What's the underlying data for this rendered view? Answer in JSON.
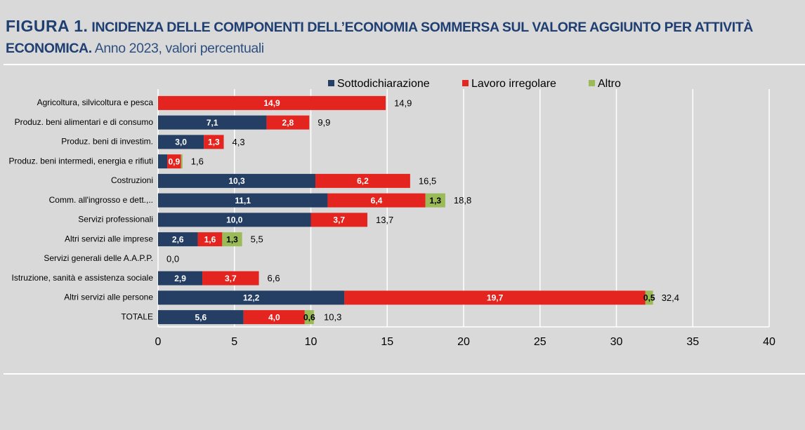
{
  "chart_data": {
    "type": "stacked-bar-horizontal",
    "figure_label": "FIGURA 1.",
    "title": "INCIDENZA DELLE COMPONENTI DELL’ECONOMIA SOMMERSA SUL VALORE AGGIUNTO PER ATTIVITÀ ECONOMICA.",
    "subtitle": "Anno 2023, valori percentuali",
    "categories": [
      "Agricoltura, silvicoltura e pesca",
      "Produz. beni alimentari e di consumo",
      "Produz. beni di investim.",
      "Produz. beni intermedi, energia e rifiuti",
      "Costruzioni",
      "Comm. all'ingrosso e dett.,..",
      "Servizi professionali",
      "Altri servizi alle imprese",
      "Servizi generali delle A.A.P.P.",
      "Istruzione, sanità e assistenza sociale",
      "Altri servizi alle persone",
      "TOTALE"
    ],
    "series": [
      {
        "name": "Sottodichiarazione",
        "color": "#243f63",
        "values": [
          null,
          7.1,
          3.0,
          0.6,
          10.3,
          11.1,
          10.0,
          2.6,
          null,
          2.9,
          12.2,
          5.6
        ],
        "value_labels": [
          null,
          "7,1",
          "3,0",
          null,
          "10,3",
          "11,1",
          "10,0",
          "2,6",
          null,
          "2,9",
          "12,2",
          "5,6"
        ]
      },
      {
        "name": "Lavoro irregolare",
        "color": "#e3241f",
        "values": [
          14.9,
          2.8,
          1.3,
          0.9,
          6.2,
          6.4,
          3.7,
          1.6,
          null,
          3.7,
          19.7,
          4.0
        ],
        "value_labels": [
          "14,9",
          "2,8",
          "1,3",
          "0,9",
          "6,2",
          "6,4",
          "3,7",
          "1,6",
          null,
          "3,7",
          "19,7",
          "4,0"
        ]
      },
      {
        "name": "Altro",
        "color": "#9bbb59",
        "values": [
          null,
          null,
          null,
          0.1,
          null,
          1.3,
          null,
          1.3,
          null,
          null,
          0.5,
          0.6
        ],
        "value_labels": [
          null,
          null,
          null,
          null,
          null,
          "1,3",
          null,
          "1,3",
          null,
          null,
          "0,5",
          "0,6"
        ]
      }
    ],
    "totals": [
      14.9,
      9.9,
      4.3,
      1.6,
      16.5,
      18.8,
      13.7,
      5.5,
      0.0,
      6.6,
      32.4,
      10.3
    ],
    "total_labels": [
      "14,9",
      "9,9",
      "4,3",
      "1,6",
      "16,5",
      "18,8",
      "13,7",
      "5,5",
      "0,0",
      "6,6",
      "32,4",
      "10,3"
    ],
    "xlim": [
      0,
      40
    ],
    "xticks": [
      0,
      5,
      10,
      15,
      20,
      25,
      30,
      35,
      40
    ],
    "grid": true
  }
}
